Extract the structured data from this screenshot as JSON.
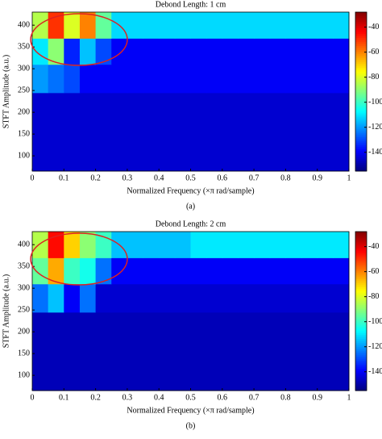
{
  "chart_data": [
    {
      "type": "heatmap",
      "title": "Debond Length: 1 cm",
      "x_label": "Normalized Frequency (×π rad/sample)",
      "y_label": "STFT Amplitude (a.u.)",
      "caption": "(a)",
      "colormap": "jet",
      "xlim": [
        0,
        1
      ],
      "ylim": [
        65,
        430
      ],
      "xticks": [
        0,
        0.1,
        0.2,
        0.3,
        0.4,
        0.5,
        0.6,
        0.7,
        0.8,
        0.9,
        1
      ],
      "yticks": [
        100,
        150,
        200,
        250,
        300,
        350,
        400
      ],
      "clim": [
        -155,
        -28
      ],
      "colorbar_ticks": [
        -140,
        -120,
        -100,
        -80,
        -60,
        -40
      ],
      "x_edges": [
        0,
        0.05,
        0.1,
        0.15,
        0.2,
        0.25,
        0.3,
        0.35,
        0.4,
        0.45,
        0.5,
        0.55,
        0.6,
        0.65,
        0.7,
        0.75,
        0.8,
        0.85,
        0.9,
        0.95,
        1
      ],
      "y_edges": [
        65,
        245,
        310,
        370,
        430
      ],
      "z": [
        [
          -145,
          -145,
          -145,
          -145,
          -145,
          -145,
          -145,
          -145,
          -145,
          -145,
          -145,
          -145,
          -145,
          -145,
          -145,
          -145,
          -145,
          -145,
          -145,
          -145
        ],
        [
          -120,
          -125,
          -130,
          -140,
          -140,
          -140,
          -140,
          -140,
          -140,
          -140,
          -140,
          -140,
          -140,
          -140,
          -140,
          -140,
          -140,
          -140,
          -140,
          -140
        ],
        [
          -110,
          -90,
          -135,
          -115,
          -130,
          -140,
          -140,
          -140,
          -140,
          -140,
          -140,
          -140,
          -140,
          -140,
          -140,
          -140,
          -140,
          -140,
          -140,
          -140
        ],
        [
          -85,
          -50,
          -80,
          -60,
          -95,
          -112,
          -112,
          -112,
          -112,
          -112,
          -112,
          -112,
          -112,
          -112,
          -112,
          -112,
          -112,
          -112,
          -112,
          -112
        ]
      ]
    },
    {
      "type": "heatmap",
      "title": "Debond Length: 2 cm",
      "x_label": "Normalized Frequency (×π rad/sample)",
      "y_label": "STFT Amplitude (a.u.)",
      "caption": "(b)",
      "colormap": "jet",
      "xlim": [
        0,
        1
      ],
      "ylim": [
        65,
        430
      ],
      "xticks": [
        0,
        0.1,
        0.2,
        0.3,
        0.4,
        0.5,
        0.6,
        0.7,
        0.8,
        0.9,
        1
      ],
      "yticks": [
        100,
        150,
        200,
        250,
        300,
        350,
        400
      ],
      "clim": [
        -155,
        -28
      ],
      "colorbar_ticks": [
        -140,
        -120,
        -100,
        -80,
        -60,
        -40
      ],
      "x_edges": [
        0,
        0.05,
        0.1,
        0.15,
        0.2,
        0.25,
        0.3,
        0.35,
        0.4,
        0.45,
        0.5,
        0.55,
        0.6,
        0.65,
        0.7,
        0.75,
        0.8,
        0.85,
        0.9,
        0.95,
        1
      ],
      "y_edges": [
        65,
        245,
        310,
        370,
        430
      ],
      "z": [
        [
          -148,
          -148,
          -148,
          -148,
          -148,
          -148,
          -148,
          -148,
          -148,
          -148,
          -148,
          -148,
          -148,
          -148,
          -148,
          -148,
          -148,
          -148,
          -148,
          -148
        ],
        [
          -125,
          -115,
          -140,
          -125,
          -145,
          -145,
          -145,
          -145,
          -145,
          -145,
          -145,
          -145,
          -145,
          -145,
          -145,
          -145,
          -145,
          -145,
          -145,
          -145
        ],
        [
          -95,
          -65,
          -100,
          -105,
          -125,
          -140,
          -140,
          -140,
          -140,
          -140,
          -140,
          -140,
          -140,
          -140,
          -140,
          -140,
          -140,
          -140,
          -140,
          -140
        ],
        [
          -85,
          -45,
          -70,
          -90,
          -100,
          -115,
          -115,
          -115,
          -115,
          -115,
          -110,
          -110,
          -110,
          -110,
          -110,
          -110,
          -110,
          -110,
          -110,
          -110
        ]
      ]
    }
  ]
}
